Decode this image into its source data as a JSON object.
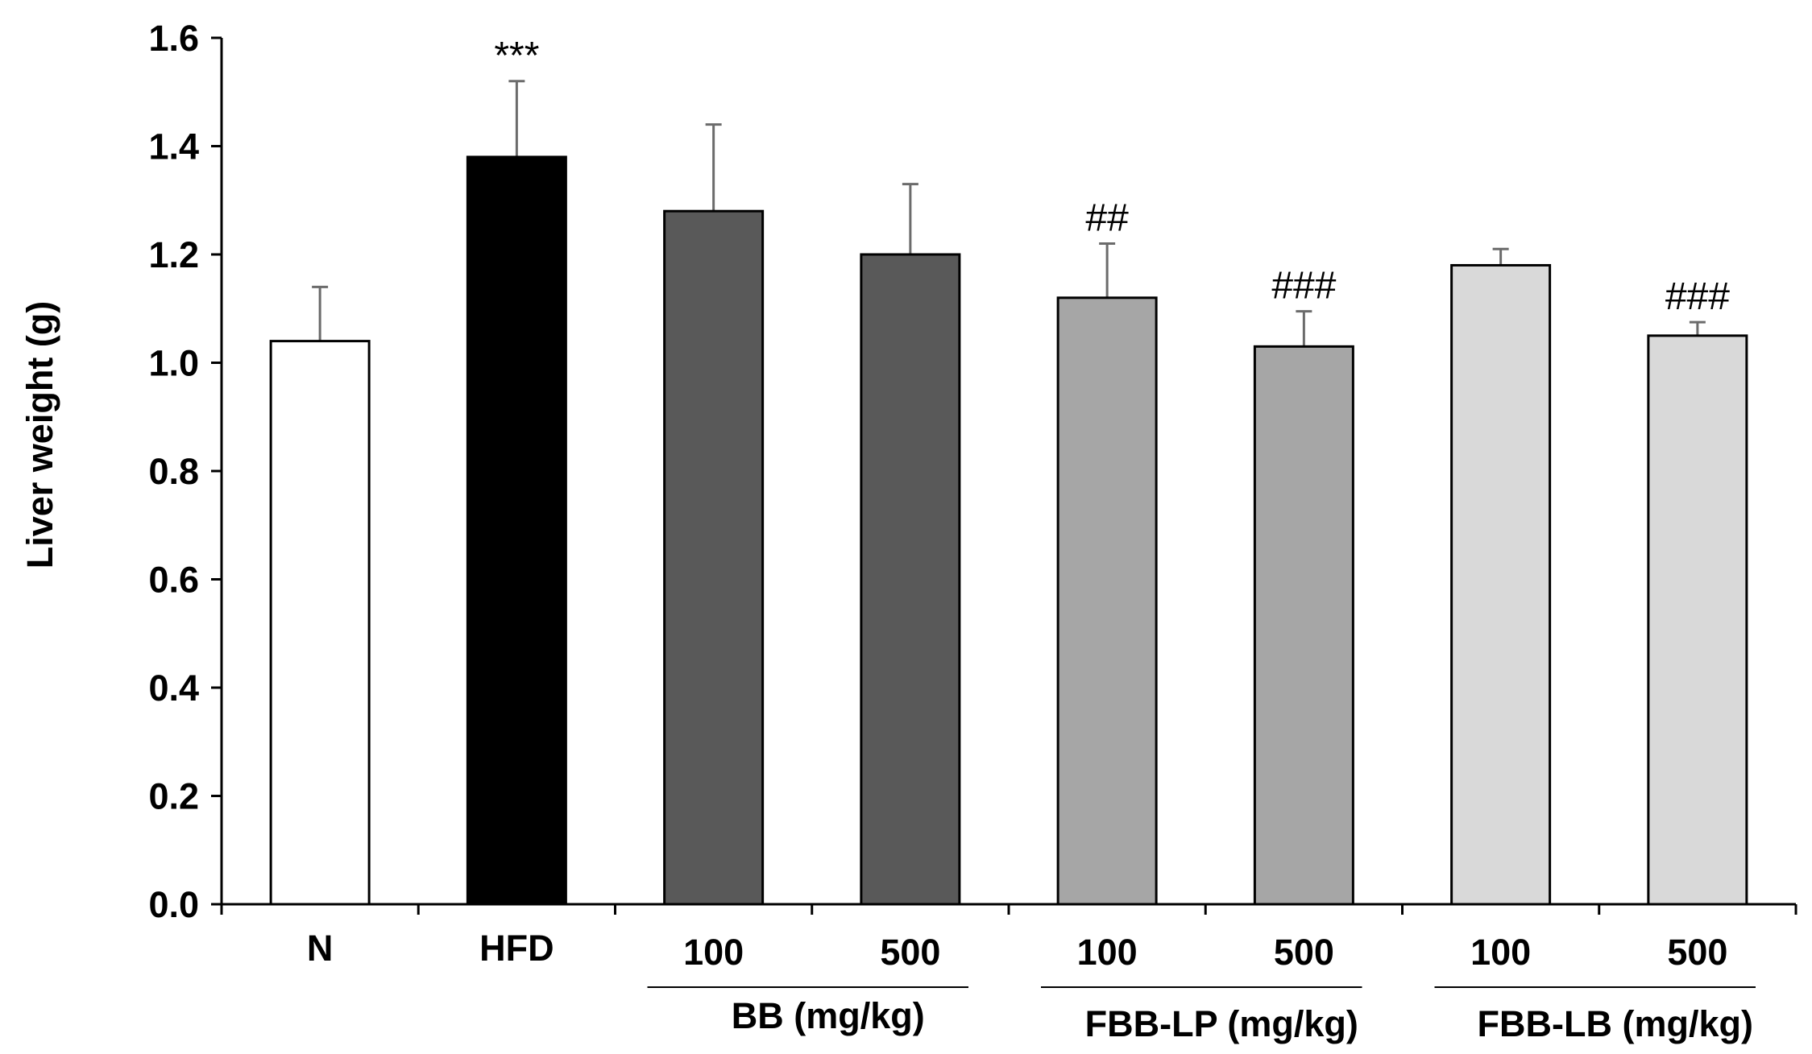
{
  "chart_data": {
    "type": "bar",
    "title": "",
    "xlabel": "",
    "ylabel": "Liver weight (g)",
    "ylim": [
      0,
      1.6
    ],
    "yticks": [
      "0.0",
      "0.2",
      "0.4",
      "0.6",
      "0.8",
      "1.0",
      "1.2",
      "1.4",
      "1.6"
    ],
    "grid": false,
    "categories": [
      "N",
      "HFD",
      "100",
      "500",
      "100",
      "500",
      "100",
      "500"
    ],
    "values": [
      1.04,
      1.38,
      1.28,
      1.2,
      1.12,
      1.03,
      1.18,
      1.05
    ],
    "errors": [
      0.1,
      0.14,
      0.16,
      0.13,
      0.1,
      0.065,
      0.03,
      0.025
    ],
    "colors": [
      "#ffffff",
      "#000000",
      "#595959",
      "#595959",
      "#a6a6a6",
      "#a6a6a6",
      "#d9d9d9",
      "#d9d9d9"
    ],
    "significance": [
      "",
      "***",
      "",
      "",
      "##",
      "###",
      "",
      "###"
    ],
    "groups": [
      {
        "label": "BB (mg/kg)",
        "bars": [
          2,
          3
        ]
      },
      {
        "label": "FBB-LP (mg/kg)",
        "bars": [
          4,
          5
        ]
      },
      {
        "label": "FBB-LB (mg/kg)",
        "bars": [
          6,
          7
        ]
      }
    ]
  }
}
